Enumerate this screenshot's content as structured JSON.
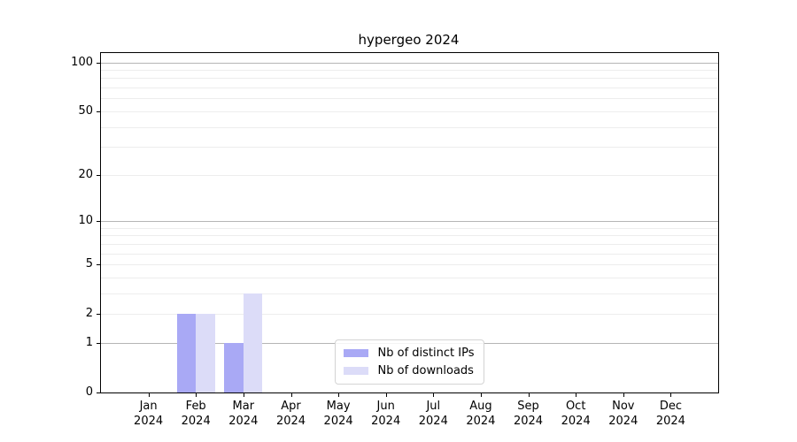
{
  "chart_data": {
    "type": "bar",
    "title": "hypergeo 2024",
    "x_tick_months": [
      "Jan",
      "Feb",
      "Mar",
      "Apr",
      "May",
      "Jun",
      "Jul",
      "Aug",
      "Sep",
      "Oct",
      "Nov",
      "Dec"
    ],
    "x_tick_year": "2024",
    "categories": [
      "Jan 2024",
      "Feb 2024",
      "Mar 2024",
      "Apr 2024",
      "May 2024",
      "Jun 2024",
      "Jul 2024",
      "Aug 2024",
      "Sep 2024",
      "Oct 2024",
      "Nov 2024",
      "Dec 2024"
    ],
    "series": [
      {
        "name": "Nb of distinct IPs",
        "color": "#a9a9f5",
        "values": [
          0,
          2,
          1,
          0,
          0,
          0,
          0,
          0,
          0,
          0,
          0,
          0
        ]
      },
      {
        "name": "Nb of downloads",
        "color": "#dcdcf8",
        "values": [
          0,
          2,
          3,
          0,
          0,
          0,
          0,
          0,
          0,
          0,
          0,
          0
        ]
      }
    ],
    "yscale": "log1p",
    "ylim": [
      0,
      114
    ],
    "ytick_labels": [
      "100",
      "50",
      "20",
      "10",
      "5",
      "2",
      "1",
      "0"
    ],
    "ytick_values": [
      100,
      50,
      20,
      10,
      5,
      2,
      1,
      0
    ],
    "grid_major_values": [
      100,
      10,
      1
    ],
    "grid_minor_values": [
      90,
      80,
      70,
      60,
      50,
      40,
      30,
      20,
      9,
      8,
      7,
      6,
      5,
      4,
      3,
      2
    ],
    "grid": "on",
    "legend_position": "lower center",
    "colors": {
      "grid_major": "#b5b5b5",
      "grid_minor": "#ededed",
      "axis": "#000000",
      "text": "#000000",
      "background": "#ffffff"
    }
  }
}
